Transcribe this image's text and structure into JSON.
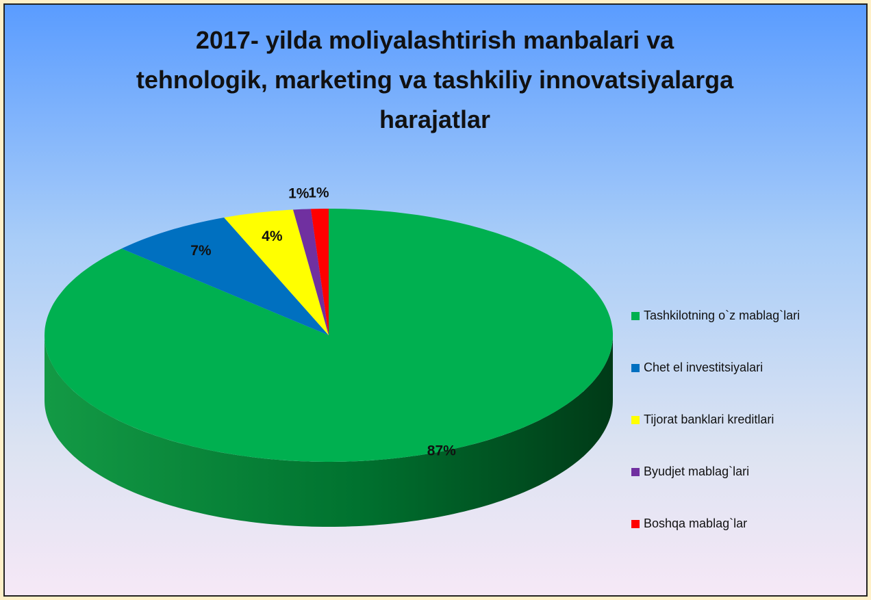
{
  "chart_data": {
    "type": "pie3d",
    "title": "2017- yilda moliyalashtirish manbalari va tehnologik, marketing va tashkiliy innovatsiyalarga harajatlar",
    "categories": [
      "Tashkilotning o`z mablag`lari",
      "Chet el investitsiyalari",
      "Tijorat banklari kreditlari",
      "Byudjet mablag`lari",
      "Boshqa mablag`lar"
    ],
    "values": [
      87,
      7,
      4,
      1,
      1
    ],
    "value_labels": [
      "87%",
      "7%",
      "4%",
      "1%",
      "1%"
    ],
    "colors": [
      "#00b050",
      "#0070c0",
      "#ffff00",
      "#7030a0",
      "#ff0000"
    ],
    "legend": "right"
  }
}
